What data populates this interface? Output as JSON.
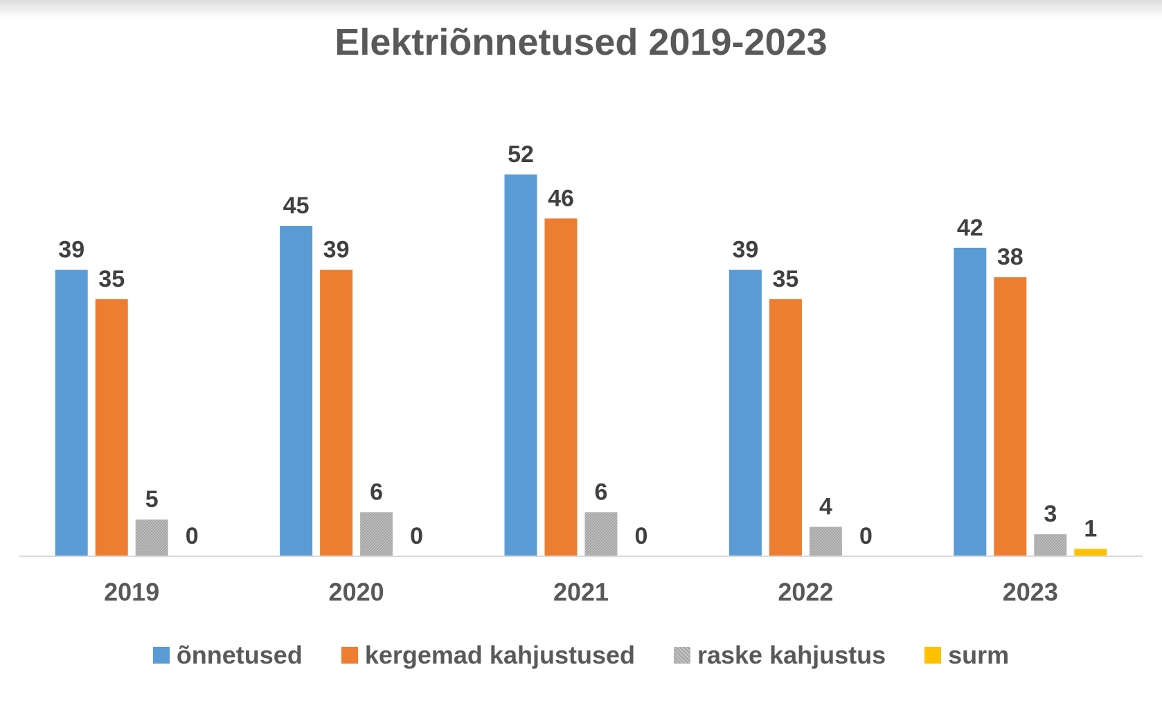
{
  "chart_data": {
    "type": "bar",
    "title": "Elektriõnnetused 2019-2023",
    "categories": [
      "2019",
      "2020",
      "2021",
      "2022",
      "2023"
    ],
    "series": [
      {
        "name": "õnnetused",
        "values": [
          39,
          45,
          52,
          39,
          42
        ],
        "color": "#5b9bd5",
        "pattern": "solid"
      },
      {
        "name": "kergemad kahjustused",
        "values": [
          35,
          39,
          46,
          35,
          38
        ],
        "color": "#ed7d31",
        "pattern": "solid"
      },
      {
        "name": "raske kahjustus",
        "values": [
          5,
          6,
          6,
          4,
          3
        ],
        "color": "#a5a5a5",
        "pattern": "hatched"
      },
      {
        "name": "surm",
        "values": [
          0,
          0,
          0,
          0,
          1
        ],
        "color": "#ffc000",
        "pattern": "solid"
      }
    ],
    "ylim": [
      0,
      60
    ],
    "grid": false,
    "data_labels": true,
    "legend_position": "bottom"
  }
}
